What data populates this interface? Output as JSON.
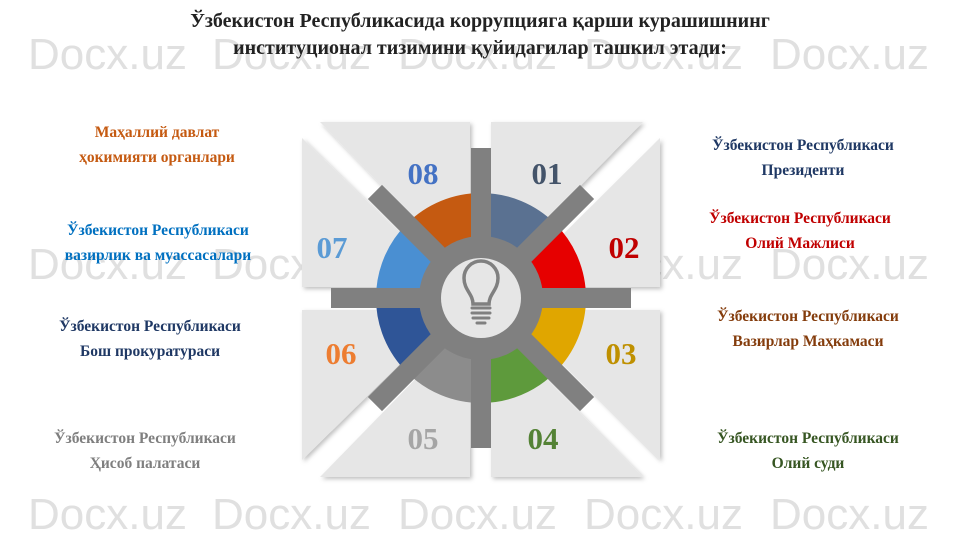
{
  "watermark": "Docx.uz",
  "title": {
    "line1": "Ўзбекистон Республикасида коррупцияга қарши курашишнинг",
    "line2": "институционал тизимини қуйидагилар ташкил этади:"
  },
  "center_icon": "lightbulb-icon",
  "items": [
    {
      "num": "01",
      "line1": "Ўзбекистон Республикаси",
      "line2": "Президенти",
      "color": "#1f3864",
      "num_color": "#44546a",
      "segment_color": "#5a7191"
    },
    {
      "num": "02",
      "line1": "Ўзбекистон Республикаси",
      "line2": "Олий Мажлиси",
      "color": "#c00000",
      "num_color": "#c00000",
      "segment_color": "#e60000"
    },
    {
      "num": "03",
      "line1": "Ўзбекистон Республикаси",
      "line2": "Вазирлар Маҳкамаси",
      "color": "#843c0c",
      "num_color": "#bf9000",
      "segment_color": "#e0a600"
    },
    {
      "num": "04",
      "line1": "Ўзбекистон Республикаси",
      "line2": "Олий суди",
      "color": "#375623",
      "num_color": "#548235",
      "segment_color": "#5e9a3c"
    },
    {
      "num": "05",
      "line1": "Ўзбекистон Республикаси",
      "line2": "Ҳисоб палатаси",
      "color": "#7f7f7f",
      "num_color": "#a5a5a5",
      "segment_color": "#8c8c8c"
    },
    {
      "num": "06",
      "line1": "Ўзбекистон Республикаси",
      "line2": "Бош прокуратураси",
      "color": "#1f3864",
      "num_color": "#ed7d31",
      "segment_color": "#2f5597"
    },
    {
      "num": "07",
      "line1": "Ўзбекистон Республикаси",
      "line2": "вазирлик ва муассасалари",
      "color": "#0070c0",
      "num_color": "#5b9bd5",
      "segment_color": "#4a8fd2"
    },
    {
      "num": "08",
      "line1": "Маҳаллий давлат",
      "line2": "ҳокимияти органлари",
      "color": "#c55a11",
      "num_color": "#4472c4",
      "segment_color": "#c55a11"
    }
  ]
}
